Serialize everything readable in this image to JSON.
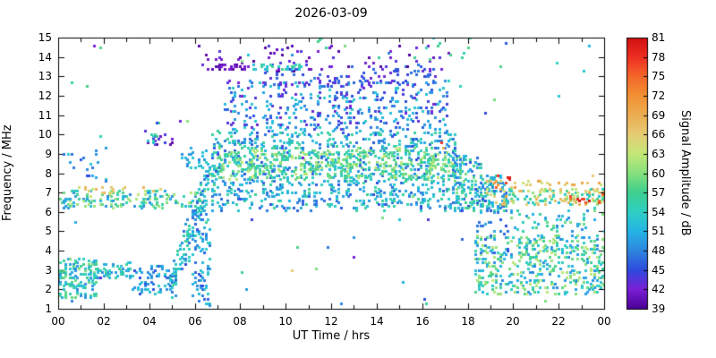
{
  "title": "2026-03-09",
  "chart_data": {
    "type": "scatter",
    "title": "2026-03-09",
    "xlabel": "UT Time / hrs",
    "ylabel": "Frequency / MHz",
    "xlim": [
      0,
      24
    ],
    "ylim": [
      1,
      15
    ],
    "grid": false,
    "x_ticks": {
      "values": [
        0,
        2,
        4,
        6,
        8,
        10,
        12,
        14,
        16,
        18,
        20,
        22,
        24
      ],
      "labels": [
        "00",
        "02",
        "04",
        "06",
        "08",
        "10",
        "12",
        "14",
        "16",
        "18",
        "20",
        "22",
        "00"
      ]
    },
    "x_minor_ticks": [
      1,
      3,
      5,
      7,
      9,
      11,
      13,
      15,
      17,
      19,
      21,
      23
    ],
    "y_ticks": [
      1,
      2,
      3,
      4,
      5,
      6,
      7,
      8,
      9,
      10,
      11,
      12,
      13,
      14,
      15
    ],
    "colorbar": {
      "label": "Signal Amplitude / dB",
      "min": 39,
      "max": 81,
      "ticks": [
        39,
        42,
        45,
        48,
        51,
        54,
        57,
        60,
        63,
        66,
        69,
        72,
        75,
        78,
        81
      ],
      "stops": [
        {
          "v": 39,
          "c": "#4b0096"
        },
        {
          "v": 42,
          "c": "#7a1fd6"
        },
        {
          "v": 45,
          "c": "#2e4bdf"
        },
        {
          "v": 48,
          "c": "#2e86de"
        },
        {
          "v": 51,
          "c": "#25b4e6"
        },
        {
          "v": 54,
          "c": "#2fcfc4"
        },
        {
          "v": 57,
          "c": "#3ecf8e"
        },
        {
          "v": 60,
          "c": "#86e07d"
        },
        {
          "v": 63,
          "c": "#c3e878"
        },
        {
          "v": 66,
          "c": "#e6cc74"
        },
        {
          "v": 69,
          "c": "#ecad52"
        },
        {
          "v": 72,
          "c": "#f29133"
        },
        {
          "v": 75,
          "c": "#f4662a"
        },
        {
          "v": 78,
          "c": "#ee2e22"
        },
        {
          "v": 81,
          "c": "#cf1010"
        }
      ]
    },
    "point_size": 3,
    "seed": 20260309,
    "clusters": [
      {
        "name": "pre-midnight-low",
        "t": [
          0,
          1.7
        ],
        "f": [
          1.6,
          3.6
        ],
        "n": 170,
        "a": [
          48,
          60
        ]
      },
      {
        "name": "night-low-3mhz",
        "t": [
          1.7,
          3.3
        ],
        "f": [
          2.6,
          3.4
        ],
        "n": 55,
        "a": [
          48,
          57
        ]
      },
      {
        "name": "night-low-2",
        "t": [
          3.2,
          5.2
        ],
        "f": [
          1.8,
          3.2
        ],
        "n": 75,
        "a": [
          45,
          54
        ]
      },
      {
        "name": "night-7mhz-band",
        "t": [
          0,
          6.5
        ],
        "f": [
          6.2,
          7.15
        ],
        "n": 170,
        "a": [
          48,
          63
        ]
      },
      {
        "name": "night-7mhz-orange",
        "t": [
          0.8,
          4.6
        ],
        "f": [
          6.9,
          7.35
        ],
        "n": 22,
        "a": [
          63,
          69
        ]
      },
      {
        "name": "early-8mhz-sparse",
        "t": [
          0.2,
          2.3
        ],
        "f": [
          7.5,
          9.3
        ],
        "n": 22,
        "a": [
          45,
          54
        ]
      },
      {
        "name": "predawn-purple-10mhz",
        "t": [
          3.8,
          5.6
        ],
        "f": [
          9.4,
          10.2
        ],
        "n": 16,
        "a": [
          39,
          45
        ]
      },
      {
        "name": "predawn-teal-10mhz",
        "t": [
          3.7,
          4.3
        ],
        "f": [
          9.6,
          10.1
        ],
        "n": 8,
        "a": [
          51,
          57
        ]
      },
      {
        "name": "dawn-rise",
        "t": [
          4.9,
          6.9
        ],
        "f": [
          1.8,
          8.8
        ],
        "n": 150,
        "a": [
          45,
          57
        ],
        "shape": "rise"
      },
      {
        "name": "dawn-vertical-spread",
        "t": [
          5.9,
          6.7
        ],
        "f": [
          1.2,
          6.2
        ],
        "n": 90,
        "a": [
          45,
          54
        ]
      },
      {
        "name": "dawn-9mhz",
        "t": [
          5.3,
          6.5
        ],
        "f": [
          8.3,
          9.3
        ],
        "n": 24,
        "a": [
          48,
          54
        ]
      },
      {
        "name": "day-core",
        "t": [
          6.7,
          17.5
        ],
        "f": [
          6.1,
          10.2
        ],
        "n": 950,
        "a": [
          45,
          57
        ]
      },
      {
        "name": "day-green-band",
        "t": [
          7.0,
          17.4
        ],
        "f": [
          7.7,
          9.3
        ],
        "n": 430,
        "a": [
          54,
          63
        ]
      },
      {
        "name": "day-upper",
        "t": [
          7.3,
          17.2
        ],
        "f": [
          10.2,
          12.8
        ],
        "n": 400,
        "a": [
          42,
          54
        ]
      },
      {
        "name": "day-top-blue",
        "t": [
          9.0,
          16.6
        ],
        "f": [
          12.5,
          13.6
        ],
        "n": 110,
        "a": [
          42,
          48
        ]
      },
      {
        "name": "top-purple-scatter",
        "t": [
          5.6,
          17.2
        ],
        "f": [
          13.3,
          14.6
        ],
        "n": 70,
        "a": [
          39,
          44
        ]
      },
      {
        "name": "top-purple-line",
        "t": [
          6.6,
          8.4
        ],
        "f": [
          13.35,
          13.6
        ],
        "n": 22,
        "a": [
          39,
          42
        ]
      },
      {
        "name": "top-teal-line",
        "t": [
          8.4,
          10.7
        ],
        "f": [
          13.35,
          13.6
        ],
        "n": 26,
        "a": [
          51,
          57
        ]
      },
      {
        "name": "top-green-sparse",
        "t": [
          11.4,
          18.3
        ],
        "f": [
          13.8,
          15.1
        ],
        "n": 14,
        "a": [
          54,
          60
        ]
      },
      {
        "name": "evening-dense",
        "t": [
          17.3,
          18.7
        ],
        "f": [
          6.0,
          8.9
        ],
        "n": 170,
        "a": [
          45,
          60
        ]
      },
      {
        "name": "evening-taper",
        "t": [
          18.6,
          19.7
        ],
        "f": [
          6.0,
          7.9
        ],
        "n": 90,
        "a": [
          45,
          57
        ]
      },
      {
        "name": "evening-orange",
        "t": [
          18.8,
          20.3
        ],
        "f": [
          6.4,
          7.7
        ],
        "n": 24,
        "a": [
          63,
          72
        ]
      },
      {
        "name": "evening-red",
        "t": [
          19.2,
          20.0
        ],
        "f": [
          7.3,
          7.9
        ],
        "n": 8,
        "a": [
          75,
          81
        ]
      },
      {
        "name": "late-7mhz-band",
        "t": [
          19.5,
          24
        ],
        "f": [
          6.4,
          7.2
        ],
        "n": 130,
        "a": [
          51,
          69
        ]
      },
      {
        "name": "late-7mhz-orange",
        "t": [
          20.2,
          24
        ],
        "f": [
          6.9,
          7.7
        ],
        "n": 28,
        "a": [
          63,
          72
        ]
      },
      {
        "name": "late-red",
        "t": [
          22.4,
          24
        ],
        "f": [
          6.5,
          6.9
        ],
        "n": 12,
        "a": [
          72,
          81
        ]
      },
      {
        "name": "evening-low-cluster",
        "t": [
          18.3,
          24
        ],
        "f": [
          1.8,
          4.8
        ],
        "n": 470,
        "a": [
          48,
          63
        ]
      },
      {
        "name": "evening-mid-sparse",
        "t": [
          19.8,
          24
        ],
        "f": [
          5.0,
          6.2
        ],
        "n": 55,
        "a": [
          48,
          60
        ]
      },
      {
        "name": "evening-blue-sparse",
        "t": [
          18.4,
          19.8
        ],
        "f": [
          3.8,
          5.6
        ],
        "n": 30,
        "a": [
          45,
          51
        ]
      },
      {
        "name": "background-scatter",
        "t": [
          0,
          24
        ],
        "f": [
          1.2,
          14.8
        ],
        "n": 60,
        "a": [
          42,
          60
        ]
      }
    ],
    "singles": [
      {
        "t": 10.25,
        "f": 2.95,
        "a": 66
      },
      {
        "t": 16.85,
        "f": 9.55,
        "a": 78
      },
      {
        "t": 16.95,
        "f": 9.3,
        "a": 69
      },
      {
        "t": 23.5,
        "f": 7.9,
        "a": 66
      },
      {
        "t": 11.6,
        "f": 15.0,
        "a": 57
      },
      {
        "t": 16.5,
        "f": 15.0,
        "a": 54
      },
      {
        "t": 18.05,
        "f": 15.0,
        "a": 57
      },
      {
        "t": 16.1,
        "f": 1.5,
        "a": 45
      },
      {
        "t": 12.4,
        "f": 1.3,
        "a": 48
      }
    ]
  }
}
